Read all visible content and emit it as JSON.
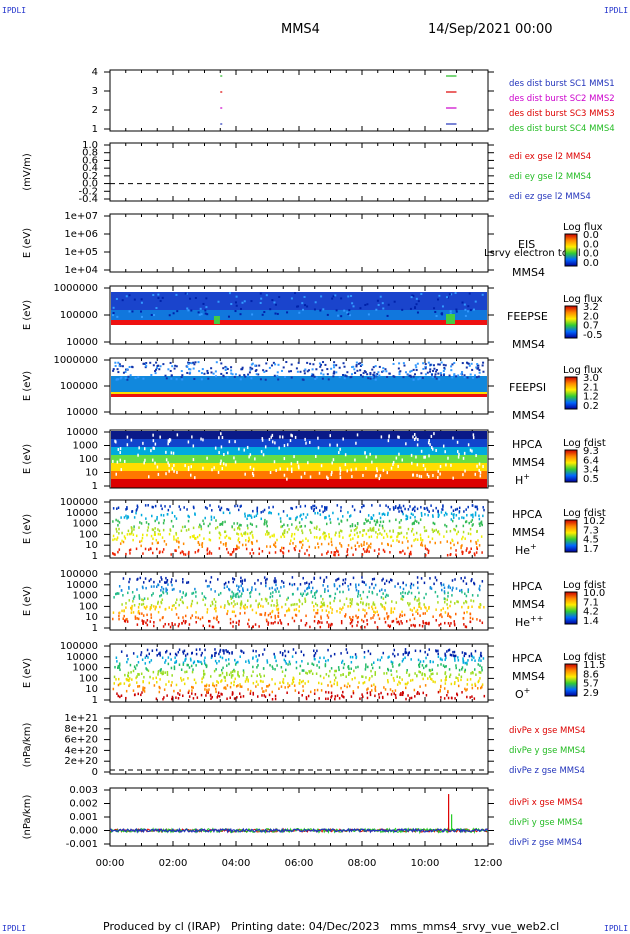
{
  "header": {
    "mission": "MMS4",
    "date": "14/Sep/2021 00:00",
    "corner_tl": "IPDLI",
    "corner_tr": "IPDLI",
    "corner_bl": "IPDLI",
    "corner_br": "IPDLI"
  },
  "footer": {
    "text": "Produced by cl (IRAP)   Printing date: 04/Dec/2023   mms_mms4_srvy_vue_web2.cl"
  },
  "x_axis": {
    "ticks": [
      "00:00",
      "02:00",
      "04:00",
      "06:00",
      "08:00",
      "10:00",
      "12:00"
    ]
  },
  "colors": {
    "red": "#dd0000",
    "green": "#22bb22",
    "blue": "#2233bb",
    "magenta": "#cc00cc",
    "band_red": "#ee1111",
    "band_blue": "#1133cc"
  },
  "panels": {
    "burst": {
      "yticks": [
        "4",
        "3",
        "2",
        "1"
      ],
      "legend": [
        "des dist burst SC1 MMS1",
        "des dist burst SC2 MMS2",
        "des dist burst SC3 MMS3",
        "des dist burst SC4 MMS4"
      ]
    },
    "edi": {
      "ylabel": "(mV/m)",
      "yticks": [
        "1.0",
        "0.8",
        "0.6",
        "0.4",
        "0.2",
        "0.0",
        "-0.2",
        "-0.4"
      ],
      "legend": [
        "edi ex gse l2 MMS4",
        "edi ey gse l2 MMS4",
        "edi ez gse l2 MMS4"
      ]
    },
    "eis": {
      "ylabel": "E (eV)",
      "yticks": [
        "1e+07",
        "1e+06",
        "1e+05",
        "1e+04"
      ],
      "inst": "EIS",
      "sub": "ExTOF proton",
      "sub2": "MMS4",
      "overlay": "Lsrvy electron tofpl",
      "cbar_title": "Log flux",
      "cbar": [
        "0.0",
        "0.0",
        "0.0",
        "0.0"
      ]
    },
    "feepse": {
      "ylabel": "E (eV)",
      "yticks": [
        "1000000",
        "100000",
        "10000"
      ],
      "inst": "FEEPSE",
      "sub": "MMS4",
      "cbar_title": "Log flux",
      "cbar": [
        "3.2",
        "2.0",
        "0.7",
        "-0.5"
      ]
    },
    "feepsi": {
      "ylabel": "E (eV)",
      "yticks": [
        "1000000",
        "100000",
        "10000"
      ],
      "inst": "FEEPSI",
      "sub": "MMS4",
      "cbar_title": "Log flux",
      "cbar": [
        "3.0",
        "2.1",
        "1.2",
        "0.2"
      ]
    },
    "hpca_h": {
      "ylabel": "E (eV)",
      "yticks": [
        "10000",
        "1000",
        "100",
        "10",
        "1"
      ],
      "inst": "HPCA",
      "sub": "MMS4",
      "ion": "H",
      "ion_sup": "+",
      "cbar_title": "Log fdist",
      "cbar": [
        "9.3",
        "6.4",
        "3.4",
        "0.5"
      ]
    },
    "hpca_he1": {
      "ylabel": "E (eV)",
      "yticks": [
        "100000",
        "10000",
        "1000",
        "100",
        "10",
        "1"
      ],
      "inst": "HPCA",
      "sub": "MMS4",
      "ion": "He",
      "ion_sup": "+",
      "cbar_title": "Log fdist",
      "cbar": [
        "10.2",
        "7.3",
        "4.5",
        "1.7"
      ]
    },
    "hpca_he2": {
      "ylabel": "E (eV)",
      "yticks": [
        "100000",
        "10000",
        "1000",
        "100",
        "10",
        "1"
      ],
      "inst": "HPCA",
      "sub": "MMS4",
      "ion": "He",
      "ion_sup": "++",
      "cbar_title": "Log fdist",
      "cbar": [
        "10.0",
        "7.1",
        "4.2",
        "1.4"
      ]
    },
    "hpca_o": {
      "ylabel": "E (eV)",
      "yticks": [
        "100000",
        "10000",
        "1000",
        "100",
        "10",
        "1"
      ],
      "inst": "HPCA",
      "sub": "MMS4",
      "ion": "O",
      "ion_sup": "+",
      "cbar_title": "Log fdist",
      "cbar": [
        "11.5",
        "8.6",
        "5.7",
        "2.9"
      ]
    },
    "divpe": {
      "ylabel": "(nPa/km)",
      "yticks": [
        "1e+21",
        "8e+20",
        "6e+20",
        "4e+20",
        "2e+20",
        "0"
      ],
      "legend": [
        "divPe x gse MMS4",
        "divPe y gse MMS4",
        "divPe z gse MMS4"
      ]
    },
    "divpi": {
      "ylabel": "(nPa/km)",
      "yticks": [
        "0.003",
        "0.002",
        "0.001",
        "0.000",
        "-0.001"
      ],
      "legend": [
        "divPi x gse MMS4",
        "divPi y gse MMS4",
        "divPi z gse MMS4"
      ]
    }
  },
  "chart_data": {
    "type": "heatmap",
    "x": [
      "00:00",
      "02:00",
      "04:00",
      "06:00",
      "08:00",
      "10:00",
      "12:00"
    ],
    "xlim": [
      "00:00",
      "12:00"
    ],
    "series": [
      {
        "name": "des dist burst SC1 MMS1",
        "intervals": [
          [
            "03:30",
            "03:32"
          ],
          [
            "10:40",
            "11:00"
          ]
        ]
      },
      {
        "name": "des dist burst SC2 MMS2",
        "intervals": [
          [
            "03:30",
            "03:32"
          ],
          [
            "10:40",
            "11:00"
          ]
        ]
      },
      {
        "name": "des dist burst SC3 MMS3",
        "intervals": [
          [
            "03:30",
            "03:32"
          ],
          [
            "10:40",
            "11:00"
          ]
        ]
      },
      {
        "name": "des dist burst SC4 MMS4",
        "intervals": [
          [
            "03:30",
            "03:32"
          ],
          [
            "10:40",
            "11:00"
          ]
        ]
      }
    ],
    "divPi_peak": {
      "time": "10:45",
      "value": 0.0027
    }
  }
}
